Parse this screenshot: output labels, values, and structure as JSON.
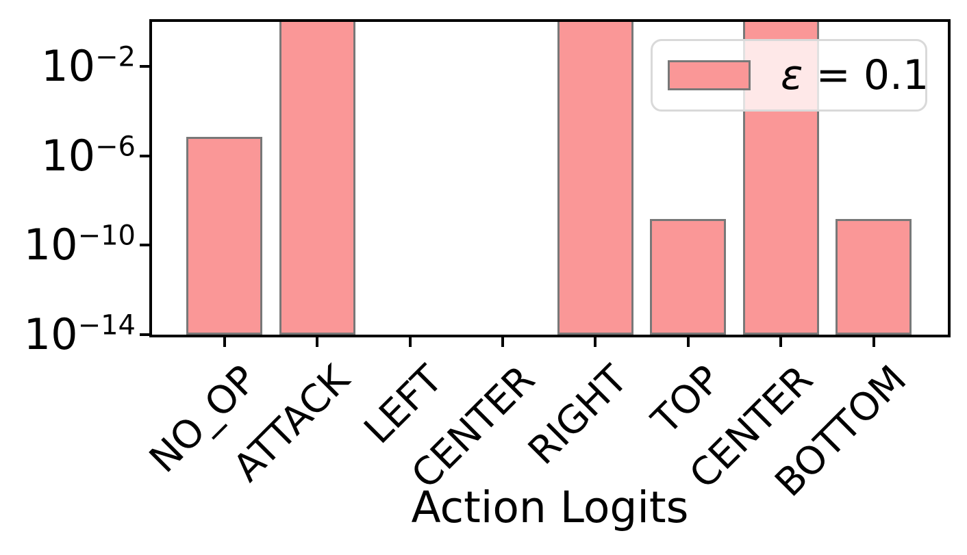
{
  "chart_data": {
    "type": "bar",
    "title": "",
    "xlabel": "Action Logits",
    "ylabel": "",
    "yscale": "log",
    "ylim": [
      1e-14,
      1.0
    ],
    "grid": false,
    "xtick_rotation": 45,
    "categories": [
      "NO_OP",
      "ATTACK",
      "LEFT",
      "CENTER",
      "RIGHT",
      "TOP",
      "CENTER",
      "BOTTOM"
    ],
    "values": [
      7e-06,
      1.0,
      null,
      null,
      1.0,
      1.5e-09,
      1.0,
      1.5e-09
    ],
    "clipped_at_top": [
      false,
      true,
      false,
      false,
      true,
      false,
      true,
      false
    ],
    "yticks": [
      {
        "base": "10",
        "exponent": "−2",
        "value": 0.01
      },
      {
        "base": "10",
        "exponent": "−6",
        "value": 1e-06
      },
      {
        "base": "10",
        "exponent": "−10",
        "value": 1e-10
      },
      {
        "base": "10",
        "exponent": "−14",
        "value": 1e-14
      }
    ],
    "legend": {
      "position": "upper right",
      "symbol": "ε",
      "rest": " = 0.1"
    },
    "colors": {
      "bar_fill": "#fa9797",
      "bar_edge": "#787878",
      "axis": "#000000",
      "text": "#000000",
      "legend_border": "#d9d9d9"
    }
  }
}
